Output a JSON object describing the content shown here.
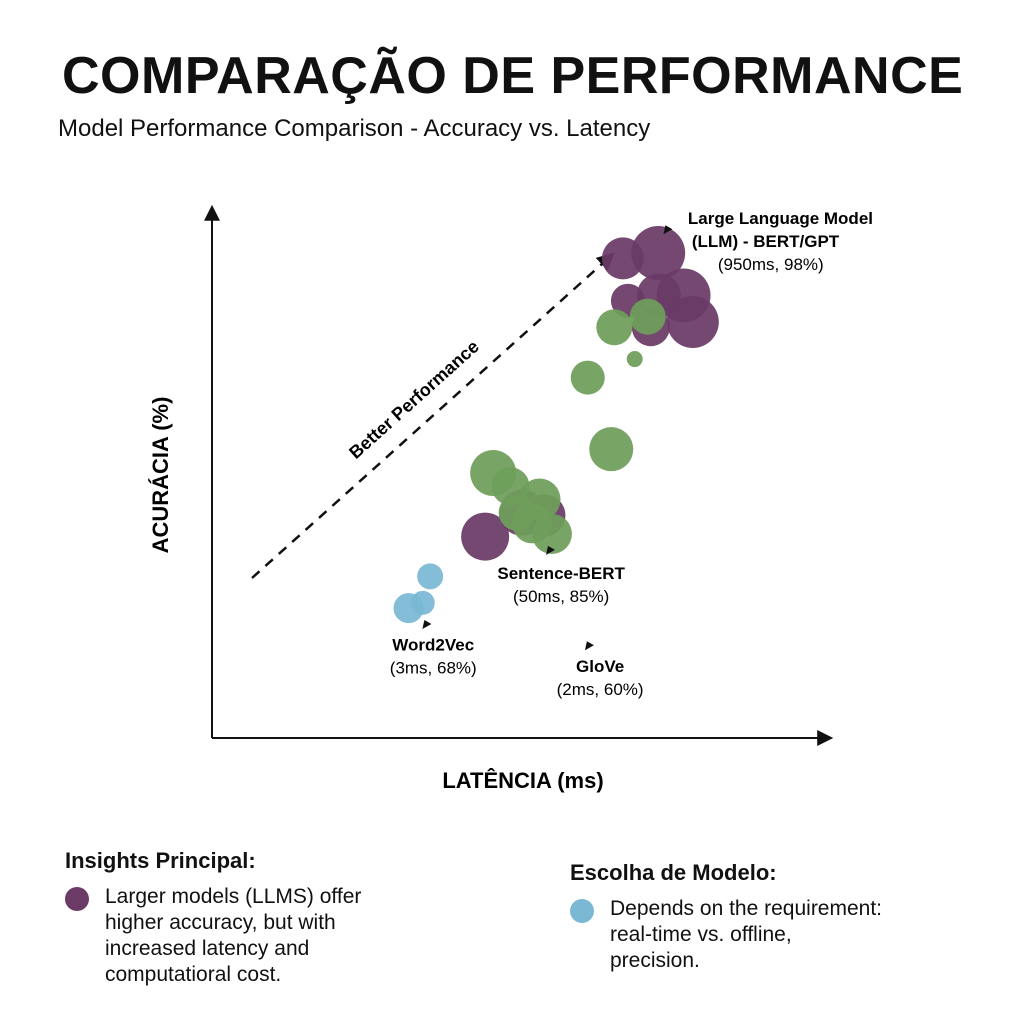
{
  "header": {
    "title": "COMPARAÇÃO DE PERFORMANCE",
    "subtitle": "Model Performance Comparison - Accuracy vs. Latency"
  },
  "chart_data": {
    "type": "scatter",
    "xlabel": "LATÊNCIA (ms)",
    "ylabel": "ACURÁCIA (%)",
    "grid": false,
    "legend": "none",
    "trend_label": "Better Performance",
    "colors": {
      "llm": "#6b3a66",
      "sentence": "#6e9e5a",
      "word": "#7ab8d4",
      "axis": "#111111"
    },
    "series": [
      {
        "group": "llm",
        "points": [
          {
            "x": 0.665,
            "y": 0.905,
            "r": 21
          },
          {
            "x": 0.722,
            "y": 0.915,
            "r": 27
          },
          {
            "x": 0.673,
            "y": 0.825,
            "r": 17
          },
          {
            "x": 0.723,
            "y": 0.835,
            "r": 22
          },
          {
            "x": 0.763,
            "y": 0.835,
            "r": 27
          },
          {
            "x": 0.778,
            "y": 0.785,
            "r": 26
          },
          {
            "x": 0.71,
            "y": 0.775,
            "r": 19
          },
          {
            "x": 0.442,
            "y": 0.38,
            "r": 24
          },
          {
            "x": 0.502,
            "y": 0.425,
            "r": 23
          },
          {
            "x": 0.538,
            "y": 0.42,
            "r": 21
          }
        ]
      },
      {
        "group": "sentence",
        "points": [
          {
            "x": 0.705,
            "y": 0.795,
            "r": 18
          },
          {
            "x": 0.651,
            "y": 0.775,
            "r": 18
          },
          {
            "x": 0.684,
            "y": 0.715,
            "r": 8
          },
          {
            "x": 0.608,
            "y": 0.68,
            "r": 17
          },
          {
            "x": 0.646,
            "y": 0.545,
            "r": 22
          },
          {
            "x": 0.455,
            "y": 0.5,
            "r": 23
          },
          {
            "x": 0.483,
            "y": 0.475,
            "r": 19
          },
          {
            "x": 0.53,
            "y": 0.45,
            "r": 21
          },
          {
            "x": 0.493,
            "y": 0.425,
            "r": 18
          },
          {
            "x": 0.518,
            "y": 0.405,
            "r": 20
          },
          {
            "x": 0.55,
            "y": 0.385,
            "r": 20
          }
        ]
      },
      {
        "group": "word",
        "points": [
          {
            "x": 0.353,
            "y": 0.305,
            "r": 13
          },
          {
            "x": 0.341,
            "y": 0.255,
            "r": 12
          },
          {
            "x": 0.318,
            "y": 0.245,
            "r": 15
          }
        ]
      }
    ],
    "annotations": [
      {
        "name": "llm",
        "lines": [
          "Large Language Model",
          "(LLM) - BERT/GPT",
          "(950ms, 98%)"
        ],
        "ax": 0.745,
        "ay": 0.96,
        "tx": 0.77,
        "ty": 0.97
      },
      {
        "name": "sentence-bert",
        "lines": [
          "Sentence-BERT",
          "(50ms, 85%)"
        ],
        "ax": 0.555,
        "ay": 0.355,
        "tx": 0.565,
        "ty": 0.3
      },
      {
        "name": "word2vec",
        "lines": [
          "Word2Vec",
          "(3ms, 68%)"
        ],
        "ax": 0.355,
        "ay": 0.215,
        "tx": 0.358,
        "ty": 0.165
      },
      {
        "name": "glove",
        "lines": [
          "GloVe",
          "(2ms, 60%)"
        ],
        "ax": 0.618,
        "ay": 0.175,
        "tx": 0.628,
        "ty": 0.125
      }
    ]
  },
  "insights": {
    "left": {
      "title": "Insights Principal:",
      "text": "Larger models (LLMS) offer\nhigher accuracy, but with\nincreased latency and\ncomputatioral cost.",
      "color": "#6b3a66"
    },
    "right": {
      "title": "Escolha de Modelo:",
      "text": "Depends on the requirement:\nreal-time vs. offline,\nprecision.",
      "color": "#7ab8d4"
    }
  }
}
